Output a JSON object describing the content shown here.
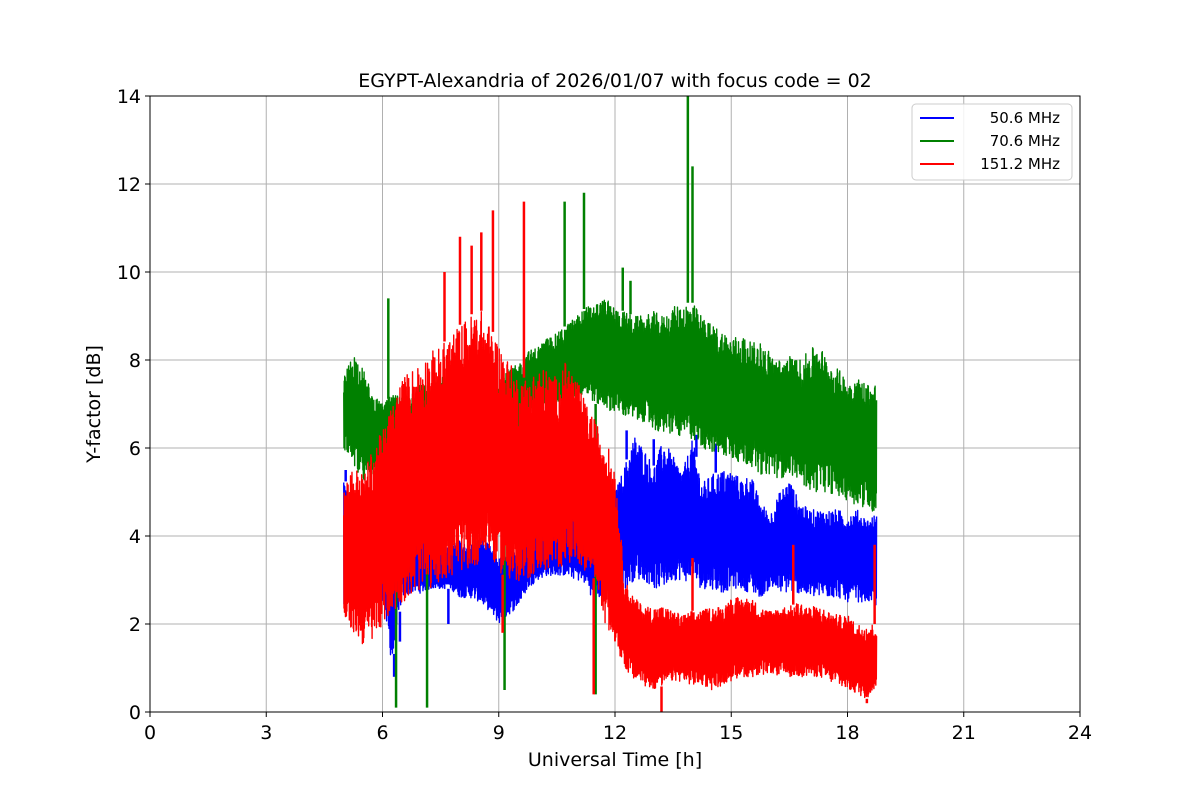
{
  "chart_data": {
    "type": "line",
    "title": "EGYPT-Alexandria of 2026/01/07 with focus code = 02",
    "xlabel": "Universal Time [h]",
    "ylabel": "Y-factor [dB]",
    "xlim": [
      0,
      24
    ],
    "ylim": [
      0,
      14
    ],
    "xticks": [
      0,
      3,
      6,
      9,
      12,
      15,
      18,
      21,
      24
    ],
    "yticks": [
      0,
      2,
      4,
      6,
      8,
      10,
      12,
      14
    ],
    "grid": true,
    "legend_position": "top-right",
    "series": [
      {
        "name": "  50.6 MHz",
        "color": "#0000ff",
        "x": [
          5.0,
          5.25,
          5.5,
          5.75,
          6.0,
          6.25,
          6.5,
          6.75,
          7.0,
          7.25,
          7.5,
          7.75,
          8.0,
          8.25,
          8.5,
          8.75,
          9.0,
          9.25,
          9.5,
          9.75,
          10.0,
          10.25,
          10.5,
          10.75,
          11.0,
          11.25,
          11.5,
          11.75,
          12.0,
          12.25,
          12.5,
          12.75,
          13.0,
          13.25,
          13.5,
          13.75,
          14.0,
          14.25,
          14.5,
          14.75,
          15.0,
          15.25,
          15.5,
          15.75,
          16.0,
          16.25,
          16.5,
          16.75,
          17.0,
          17.25,
          17.5,
          17.75,
          18.0,
          18.25,
          18.5,
          18.75
        ],
        "min": [
          2.2,
          2.6,
          2.6,
          2.7,
          2.6,
          1.0,
          2.6,
          2.7,
          2.7,
          2.8,
          2.8,
          2.8,
          2.6,
          2.6,
          2.5,
          2.3,
          2.0,
          2.2,
          2.4,
          2.8,
          3.0,
          3.1,
          3.1,
          3.1,
          3.0,
          2.9,
          2.4,
          2.8,
          2.6,
          2.8,
          3.0,
          3.0,
          2.8,
          2.8,
          3.0,
          3.0,
          2.9,
          2.8,
          2.8,
          2.7,
          2.8,
          2.8,
          2.7,
          2.6,
          2.8,
          2.7,
          2.7,
          2.7,
          2.6,
          2.6,
          2.6,
          2.6,
          2.5,
          2.5,
          2.5,
          2.4
        ],
        "max": [
          5.5,
          4.2,
          4.3,
          3.6,
          4.2,
          4.5,
          4.1,
          4.3,
          3.9,
          3.8,
          3.7,
          3.8,
          3.9,
          3.8,
          4.0,
          3.8,
          3.5,
          3.6,
          3.9,
          4.1,
          4.4,
          4.2,
          4.3,
          4.4,
          4.8,
          4.7,
          4.6,
          4.7,
          5.0,
          5.6,
          6.3,
          6.0,
          5.6,
          6.2,
          5.8,
          5.5,
          6.2,
          5.2,
          5.4,
          5.5,
          5.5,
          5.3,
          5.4,
          4.8,
          4.5,
          5.0,
          5.3,
          4.8,
          4.6,
          4.6,
          4.6,
          4.6,
          4.5,
          4.6,
          4.4,
          4.5
        ]
      },
      {
        "name": "  70.6 MHz",
        "color": "#008000",
        "x": [
          5.0,
          5.25,
          5.5,
          5.75,
          6.0,
          6.25,
          6.5,
          6.75,
          7.0,
          7.25,
          7.5,
          7.75,
          8.0,
          8.25,
          8.5,
          8.75,
          9.0,
          9.25,
          9.5,
          9.75,
          10.0,
          10.25,
          10.5,
          10.75,
          11.0,
          11.25,
          11.5,
          11.75,
          12.0,
          12.25,
          12.5,
          12.75,
          13.0,
          13.25,
          13.5,
          13.75,
          14.0,
          14.25,
          14.5,
          14.75,
          15.0,
          15.25,
          15.5,
          15.75,
          16.0,
          16.25,
          16.5,
          16.75,
          17.0,
          17.25,
          17.5,
          17.75,
          18.0,
          18.25,
          18.5,
          18.75
        ],
        "min": [
          6.0,
          5.6,
          5.2,
          5.4,
          5.6,
          5.4,
          5.6,
          5.6,
          5.8,
          5.8,
          5.8,
          5.6,
          5.7,
          5.8,
          5.8,
          5.7,
          5.8,
          6.0,
          6.2,
          6.5,
          6.8,
          7.0,
          7.0,
          7.0,
          7.2,
          7.2,
          7.0,
          6.9,
          6.8,
          6.7,
          6.6,
          6.6,
          6.4,
          6.3,
          6.3,
          6.2,
          6.2,
          6.0,
          5.9,
          5.8,
          5.8,
          5.6,
          5.6,
          5.4,
          5.4,
          5.3,
          5.4,
          5.3,
          5.0,
          5.0,
          5.0,
          4.9,
          4.8,
          4.7,
          4.6,
          4.5
        ],
        "max": [
          7.6,
          8.2,
          7.8,
          7.2,
          7.0,
          7.2,
          7.2,
          7.3,
          7.5,
          7.4,
          7.6,
          7.7,
          7.4,
          7.5,
          7.6,
          7.4,
          7.6,
          7.8,
          7.9,
          8.2,
          8.3,
          8.5,
          8.6,
          8.8,
          9.0,
          9.2,
          9.3,
          9.4,
          9.2,
          9.1,
          9.0,
          9.0,
          9.1,
          9.0,
          9.2,
          9.3,
          9.3,
          9.0,
          8.8,
          8.7,
          8.5,
          8.6,
          8.4,
          8.4,
          8.2,
          8.0,
          8.1,
          8.0,
          8.2,
          8.4,
          8.0,
          7.8,
          7.6,
          7.6,
          7.5,
          7.5
        ]
      },
      {
        "name": "151.2 MHz",
        "color": "#ff0000",
        "x": [
          5.0,
          5.25,
          5.5,
          5.75,
          6.0,
          6.25,
          6.5,
          6.75,
          7.0,
          7.25,
          7.5,
          7.75,
          8.0,
          8.25,
          8.5,
          8.75,
          9.0,
          9.25,
          9.5,
          9.75,
          10.0,
          10.25,
          10.5,
          10.75,
          11.0,
          11.25,
          11.5,
          11.75,
          12.0,
          12.25,
          12.5,
          12.75,
          13.0,
          13.25,
          13.5,
          13.75,
          14.0,
          14.25,
          14.5,
          14.75,
          15.0,
          15.25,
          15.5,
          15.75,
          16.0,
          16.25,
          16.5,
          16.75,
          17.0,
          17.25,
          17.5,
          17.75,
          18.0,
          18.25,
          18.5,
          18.75
        ],
        "min": [
          2.0,
          1.8,
          1.5,
          1.6,
          2.0,
          2.2,
          2.5,
          2.6,
          2.8,
          2.8,
          3.0,
          3.0,
          3.2,
          3.2,
          3.4,
          3.6,
          3.2,
          3.0,
          2.8,
          3.0,
          3.2,
          3.2,
          3.2,
          3.4,
          3.4,
          3.2,
          3.0,
          2.0,
          1.5,
          1.0,
          0.7,
          0.6,
          0.5,
          0.6,
          0.7,
          0.7,
          0.6,
          0.6,
          0.5,
          0.6,
          0.7,
          0.8,
          0.8,
          0.8,
          0.9,
          0.8,
          0.8,
          0.8,
          0.8,
          0.8,
          0.7,
          0.6,
          0.5,
          0.4,
          0.3,
          0.6
        ],
        "max": [
          5.2,
          5.6,
          5.4,
          6.0,
          6.4,
          7.0,
          7.6,
          7.8,
          8.0,
          8.2,
          8.3,
          8.6,
          8.8,
          9.0,
          9.2,
          8.8,
          8.4,
          8.0,
          7.6,
          7.6,
          7.8,
          7.8,
          7.6,
          8.0,
          7.6,
          7.0,
          6.6,
          6.2,
          5.6,
          3.0,
          2.6,
          2.4,
          2.4,
          2.4,
          2.3,
          2.2,
          2.3,
          2.3,
          2.4,
          2.4,
          2.6,
          2.6,
          2.6,
          2.4,
          2.3,
          2.4,
          2.4,
          2.5,
          2.4,
          2.4,
          2.3,
          2.2,
          2.2,
          2.0,
          2.0,
          2.0
        ]
      }
    ],
    "spikes": [
      {
        "series": 0,
        "x": 5.05,
        "y": 5.5
      },
      {
        "series": 0,
        "x": 6.3,
        "y": 0.8
      },
      {
        "series": 0,
        "x": 6.45,
        "y": 1.6
      },
      {
        "series": 0,
        "x": 7.7,
        "y": 2.0
      },
      {
        "series": 0,
        "x": 12.3,
        "y": 6.4
      },
      {
        "series": 0,
        "x": 13.0,
        "y": 6.2
      },
      {
        "series": 0,
        "x": 14.1,
        "y": 6.3
      },
      {
        "series": 0,
        "x": 14.6,
        "y": 6.1
      },
      {
        "series": 1,
        "x": 6.15,
        "y": 9.4
      },
      {
        "series": 1,
        "x": 6.35,
        "y": 0.1
      },
      {
        "series": 1,
        "x": 7.15,
        "y": 0.1
      },
      {
        "series": 1,
        "x": 9.15,
        "y": 0.5
      },
      {
        "series": 1,
        "x": 10.7,
        "y": 11.6
      },
      {
        "series": 1,
        "x": 11.2,
        "y": 11.8
      },
      {
        "series": 1,
        "x": 11.5,
        "y": 0.4
      },
      {
        "series": 1,
        "x": 12.2,
        "y": 10.1
      },
      {
        "series": 1,
        "x": 12.4,
        "y": 9.8
      },
      {
        "series": 1,
        "x": 13.88,
        "y": 14.0
      },
      {
        "series": 1,
        "x": 14.0,
        "y": 12.4
      },
      {
        "series": 2,
        "x": 7.6,
        "y": 10.0
      },
      {
        "series": 2,
        "x": 8.0,
        "y": 10.8
      },
      {
        "series": 2,
        "x": 8.3,
        "y": 10.6
      },
      {
        "series": 2,
        "x": 8.55,
        "y": 10.9
      },
      {
        "series": 2,
        "x": 8.85,
        "y": 11.4
      },
      {
        "series": 2,
        "x": 9.65,
        "y": 11.6
      },
      {
        "series": 2,
        "x": 9.1,
        "y": 1.8
      },
      {
        "series": 2,
        "x": 11.45,
        "y": 0.4
      },
      {
        "series": 2,
        "x": 13.2,
        "y": 0.0
      },
      {
        "series": 2,
        "x": 14.0,
        "y": 3.5
      },
      {
        "series": 2,
        "x": 16.6,
        "y": 3.8
      },
      {
        "series": 2,
        "x": 18.5,
        "y": 0.2
      },
      {
        "series": 2,
        "x": 18.7,
        "y": 3.8
      }
    ]
  }
}
